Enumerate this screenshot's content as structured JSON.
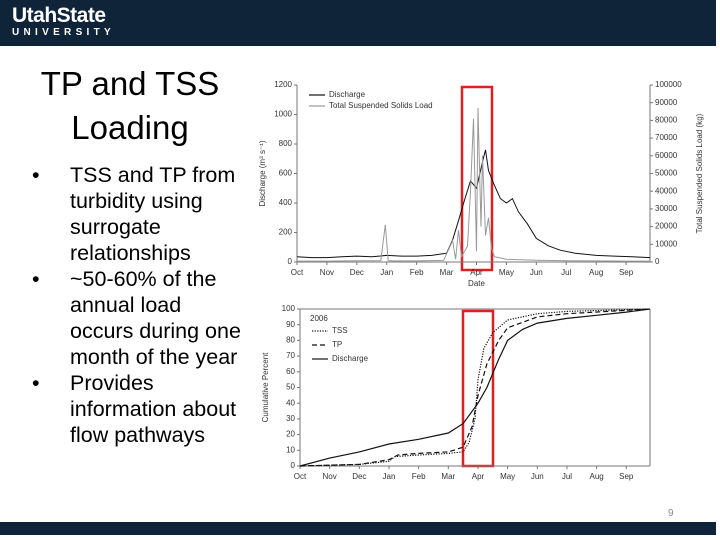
{
  "header": {
    "logo_top": "UtahState",
    "logo_bottom": "UNIVERSITY"
  },
  "title": {
    "line1": "TP and TSS",
    "line2": "Loading"
  },
  "bullets": [
    "TSS and TP from turbidity using surrogate relationships",
    "~50-60% of the annual load occurs during one month of the year",
    "Provides information about flow pathways"
  ],
  "page_number": "9",
  "chart_data": [
    {
      "type": "line",
      "xlabel": "Date",
      "ylabel": "Discharge (m³ s⁻¹)",
      "y2label": "Total Suspended Solids Load (kg)",
      "xlim": [
        0,
        11.8
      ],
      "xticks": [
        {
          "value": 0,
          "label": "Oct"
        },
        {
          "value": 1,
          "label": "Nov"
        },
        {
          "value": 2,
          "label": "Dec"
        },
        {
          "value": 3,
          "label": "Jan"
        },
        {
          "value": 4,
          "label": "Feb"
        },
        {
          "value": 5,
          "label": "Mar"
        },
        {
          "value": 6,
          "label": "Apr"
        },
        {
          "value": 7,
          "label": "May"
        },
        {
          "value": 8,
          "label": "Jun"
        },
        {
          "value": 9,
          "label": "Jul"
        },
        {
          "value": 10,
          "label": "Aug"
        },
        {
          "value": 11,
          "label": "Sep"
        }
      ],
      "ylim": [
        0,
        1200
      ],
      "yticks": [
        0,
        200,
        400,
        600,
        800,
        1000,
        1200
      ],
      "y2lim": [
        0,
        100000
      ],
      "y2ticks": [
        0,
        10000,
        20000,
        30000,
        40000,
        50000,
        60000,
        70000,
        80000,
        90000,
        100000
      ],
      "legend": "upper left",
      "series": [
        {
          "name": "Discharge",
          "color": "#111111",
          "dash": "solid",
          "x": [
            0,
            0.5,
            1,
            1.5,
            2,
            2.5,
            3,
            3.5,
            4,
            4.5,
            5,
            5.2,
            5.4,
            5.6,
            5.8,
            6,
            6.2,
            6.3,
            6.4,
            6.6,
            6.8,
            7,
            7.2,
            7.4,
            7.7,
            8,
            8.4,
            8.8,
            9.3,
            10,
            10.6,
            11.2,
            11.8
          ],
          "values": [
            35,
            30,
            30,
            35,
            40,
            35,
            45,
            40,
            40,
            45,
            60,
            150,
            280,
            420,
            550,
            500,
            680,
            760,
            620,
            520,
            430,
            400,
            430,
            340,
            260,
            160,
            110,
            80,
            60,
            45,
            40,
            35,
            30
          ]
        },
        {
          "name": "Total Suspended Solids Load",
          "color": "#999999",
          "dash": "solid",
          "axis": "y2",
          "x": [
            0,
            1,
            2,
            2.8,
            2.95,
            3.05,
            3.2,
            4,
            4.9,
            5.2,
            5.3,
            5.4,
            5.5,
            5.7,
            5.8,
            5.9,
            6,
            6.05,
            6.15,
            6.2,
            6.3,
            6.4,
            6.5,
            6.6,
            7,
            8,
            9,
            10,
            11,
            11.8
          ],
          "values": [
            500,
            500,
            700,
            800,
            21000,
            800,
            600,
            600,
            900,
            12000,
            1500,
            18000,
            3000,
            9000,
            40000,
            81000,
            6000,
            87000,
            20000,
            60000,
            15000,
            25000,
            8000,
            3000,
            1500,
            1000,
            700,
            600,
            500,
            500
          ]
        }
      ]
    },
    {
      "type": "line",
      "ylabel": "Cumulative Percent",
      "xlim": [
        0,
        11.8
      ],
      "xticks": [
        {
          "value": 0,
          "label": "Oct"
        },
        {
          "value": 1,
          "label": "Nov"
        },
        {
          "value": 2,
          "label": "Dec"
        },
        {
          "value": 3,
          "label": "Jan"
        },
        {
          "value": 4,
          "label": "Feb"
        },
        {
          "value": 5,
          "label": "Mar"
        },
        {
          "value": 6,
          "label": "Apr"
        },
        {
          "value": 7,
          "label": "May"
        },
        {
          "value": 8,
          "label": "Jun"
        },
        {
          "value": 9,
          "label": "Jul"
        },
        {
          "value": 10,
          "label": "Aug"
        },
        {
          "value": 11,
          "label": "Sep"
        }
      ],
      "ylim": [
        0,
        100
      ],
      "yticks": [
        0,
        10,
        20,
        30,
        40,
        50,
        60,
        70,
        80,
        90,
        100
      ],
      "legend": "upper left",
      "legend_title": "2006",
      "series": [
        {
          "name": "TSS",
          "color": "#111111",
          "dash": "dotted",
          "x": [
            0,
            2,
            3,
            3.2,
            4,
            5,
            5.5,
            5.7,
            5.9,
            6,
            6.2,
            6.5,
            7,
            8,
            9,
            11.8
          ],
          "values": [
            0,
            1,
            3,
            6,
            7,
            8,
            9,
            15,
            30,
            55,
            75,
            85,
            93,
            97,
            98.5,
            100
          ]
        },
        {
          "name": "TP",
          "color": "#111111",
          "dash": "dashed",
          "x": [
            0,
            2,
            3,
            3.3,
            4,
            5,
            5.5,
            5.8,
            6,
            6.3,
            6.7,
            7,
            8,
            9,
            11.8
          ],
          "values": [
            0,
            1,
            4,
            7,
            8,
            9,
            12,
            25,
            45,
            65,
            80,
            88,
            95,
            97,
            100
          ]
        },
        {
          "name": "Discharge",
          "color": "#111111",
          "dash": "solid",
          "x": [
            0,
            1,
            2,
            3,
            4,
            5,
            5.5,
            6,
            6.3,
            6.7,
            7,
            7.5,
            8,
            9,
            10,
            11,
            11.8
          ],
          "values": [
            0,
            5,
            9,
            14,
            17,
            21,
            27,
            40,
            50,
            68,
            80,
            87,
            91,
            94,
            96,
            98,
            100
          ]
        }
      ]
    }
  ]
}
